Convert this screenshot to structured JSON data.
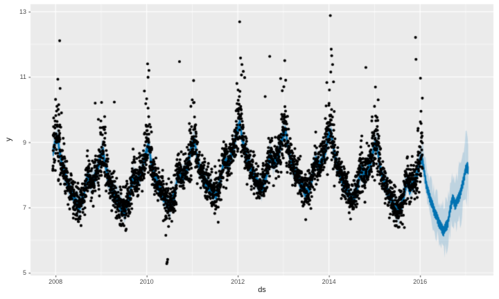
{
  "chart_data": {
    "type": "line",
    "overlays": [
      "scatter",
      "area-ribbon"
    ],
    "title": "",
    "xlabel": "ds",
    "ylabel": "y",
    "xlim": [
      2007.45,
      2017.61
    ],
    "ylim": [
      4.92,
      13.23
    ],
    "grid": "on",
    "legend": "none",
    "panel_style": "ggplot-gray",
    "x_ticks": {
      "values": [
        2008,
        2010,
        2012,
        2014,
        2016
      ],
      "labels": [
        "2008",
        "2010",
        "2012",
        "2014",
        "2016"
      ],
      "minor": [
        2009,
        2011,
        2013,
        2015,
        2017
      ]
    },
    "y_ticks": {
      "values": [
        5,
        7,
        9,
        11,
        13
      ],
      "labels": [
        "5",
        "7",
        "9",
        "11",
        "13"
      ],
      "minor": [
        6,
        8,
        10,
        12
      ]
    },
    "history_range": [
      2007.94,
      2016.055
    ],
    "forecast_range": [
      2016.055,
      2017.06
    ],
    "trend_points": [
      [
        2007.94,
        8.2
      ],
      [
        2009.0,
        7.75
      ],
      [
        2010.0,
        7.9
      ],
      [
        2011.0,
        8.05
      ],
      [
        2012.1,
        8.62
      ],
      [
        2013.0,
        8.4
      ],
      [
        2014.0,
        8.35
      ],
      [
        2015.0,
        8.0
      ],
      [
        2016.06,
        7.55
      ],
      [
        2016.6,
        7.15
      ],
      [
        2017.06,
        7.3
      ]
    ],
    "yearly_seasonality": [
      [
        0.0,
        0.9
      ],
      [
        0.045,
        1.0
      ],
      [
        0.1,
        0.5
      ],
      [
        0.16,
        0.1
      ],
      [
        0.22,
        -0.12
      ],
      [
        0.3,
        -0.4
      ],
      [
        0.38,
        -0.62
      ],
      [
        0.46,
        -0.82
      ],
      [
        0.52,
        -0.9
      ],
      [
        0.57,
        -0.7
      ],
      [
        0.62,
        -0.55
      ],
      [
        0.67,
        -0.1
      ],
      [
        0.715,
        0.12
      ],
      [
        0.77,
        -0.08
      ],
      [
        0.83,
        0.05
      ],
      [
        0.9,
        0.3
      ],
      [
        0.95,
        0.6
      ],
      [
        1.0,
        0.9
      ]
    ],
    "weekly_amplitude": 0.15,
    "uncertainty": {
      "in_sample_halfwidth": 0.38,
      "forecast_halfwidth_start": 0.55,
      "forecast_halfwidth_end": 1.05,
      "edge_jitter_mean": 0.6,
      "edge_jitter_max": 1.2
    },
    "observations": {
      "frequency": "daily",
      "residual_sd": 0.26,
      "winter_extra_sd": 0.22,
      "winter_upside_prob": 0.18,
      "notable_points": [
        [
          2008.03,
          10.1
        ],
        [
          2008.05,
          10.93
        ],
        [
          2008.07,
          10.15
        ],
        [
          2008.09,
          12.11
        ],
        [
          2008.1,
          10.65
        ],
        [
          2008.13,
          9.9
        ],
        [
          2008.87,
          10.2
        ],
        [
          2009.01,
          10.22
        ],
        [
          2009.29,
          10.23
        ],
        [
          2009.95,
          10.57
        ],
        [
          2009.98,
          10.18
        ],
        [
          2010.0,
          10.33
        ],
        [
          2010.02,
          11.4
        ],
        [
          2010.03,
          10.99
        ],
        [
          2010.05,
          11.2
        ],
        [
          2010.4,
          6.63
        ],
        [
          2010.42,
          6.15
        ],
        [
          2010.44,
          5.28
        ],
        [
          2010.45,
          5.33
        ],
        [
          2010.46,
          5.41
        ],
        [
          2010.48,
          6.42
        ],
        [
          2010.72,
          11.47
        ],
        [
          2010.97,
          10.1
        ],
        [
          2011.0,
          10.3
        ],
        [
          2011.03,
          10.89
        ],
        [
          2011.57,
          6.55
        ],
        [
          2011.98,
          10.8
        ],
        [
          2012.04,
          12.69
        ],
        [
          2012.06,
          11.58
        ],
        [
          2012.08,
          11.06
        ],
        [
          2012.09,
          11.38
        ],
        [
          2012.12,
          11.17
        ],
        [
          2012.15,
          10.98
        ],
        [
          2012.6,
          10.4
        ],
        [
          2012.7,
          11.63
        ],
        [
          2013.01,
          10.7
        ],
        [
          2013.03,
          11.5
        ],
        [
          2013.05,
          10.9
        ],
        [
          2013.49,
          6.63
        ],
        [
          2014.01,
          10.6
        ],
        [
          2014.03,
          12.88
        ],
        [
          2014.04,
          11.15
        ],
        [
          2014.05,
          11.85
        ],
        [
          2014.06,
          11.65
        ],
        [
          2014.08,
          11.38
        ],
        [
          2014.1,
          10.85
        ],
        [
          2014.81,
          11.29
        ],
        [
          2015.0,
          10.1
        ],
        [
          2015.02,
          10.69
        ],
        [
          2015.08,
          10.3
        ],
        [
          2015.9,
          12.21
        ],
        [
          2015.91,
          11.54
        ],
        [
          2016.02,
          9.95
        ],
        [
          2016.05,
          10.35
        ]
      ]
    },
    "colors": {
      "line": "#0072B2",
      "ribbon": "rgba(0,114,178,0.19)",
      "points": "#000000",
      "panel_bg": "#EBEBEB",
      "grid_major": "#FFFFFF",
      "grid_minor": "#FFFFFF",
      "tick_mark": "#333333",
      "tick_label": "#4D4D4D",
      "axis_title": "#1A1A1A"
    },
    "seed": 7
  }
}
